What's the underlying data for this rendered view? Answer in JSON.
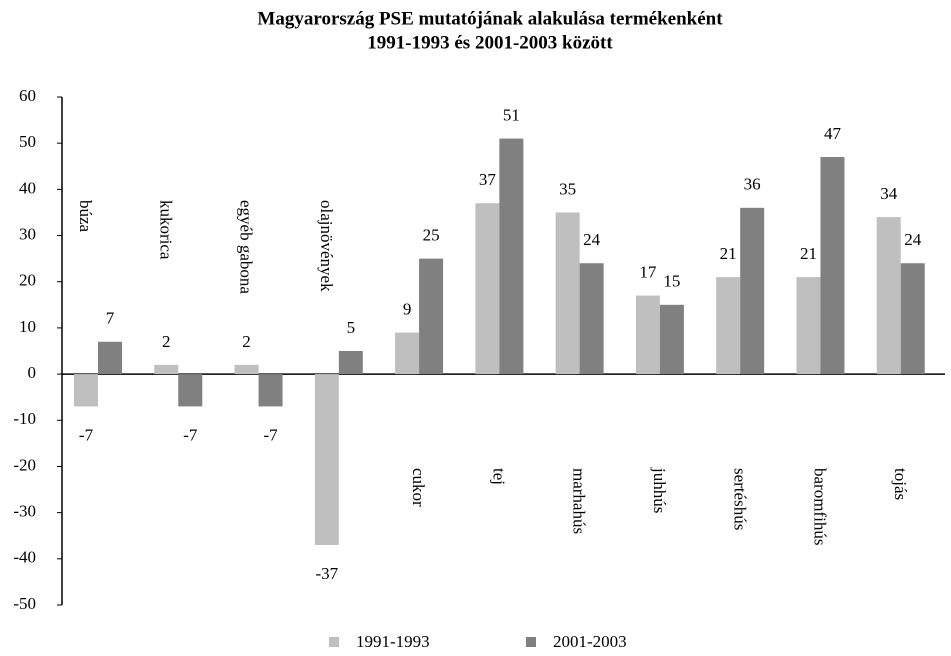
{
  "chart_data": {
    "type": "bar",
    "title": [
      "Magyarország PSE mutatójának alakulása termékenként",
      "1991-1993 és 2001-2003 között"
    ],
    "categories": [
      "búza",
      "kukorica",
      "egyéb gabona",
      "olajnövények",
      "cukor",
      "tej",
      "marhahús",
      "juhhús",
      "sertéshús",
      "baromfihús",
      "tojás"
    ],
    "series": [
      {
        "name": "1991-1993",
        "color": "#bfbfbf",
        "values": [
          -7,
          2,
          2,
          -37,
          9,
          37,
          35,
          17,
          21,
          21,
          34
        ]
      },
      {
        "name": "2001-2003",
        "color": "#808080",
        "values": [
          7,
          -7,
          -7,
          5,
          25,
          51,
          24,
          15,
          36,
          47,
          24
        ]
      }
    ],
    "ylim": [
      -50,
      60
    ],
    "yticks": [
      -50,
      -40,
      -30,
      -20,
      -10,
      0,
      10,
      20,
      30,
      40,
      50,
      60
    ],
    "grid": false,
    "legend": "bottom"
  }
}
